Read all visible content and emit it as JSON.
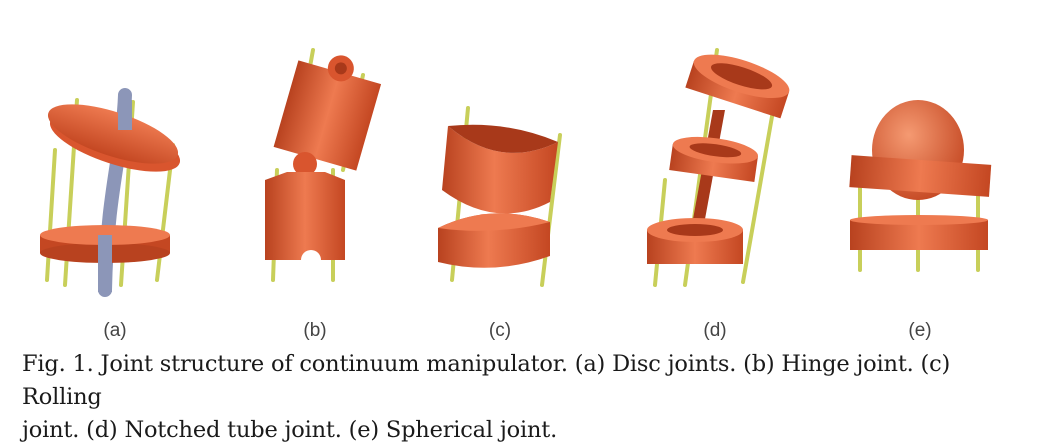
{
  "figure": {
    "panels": [
      {
        "label": "(a)",
        "icon": "disc-joint-drawing"
      },
      {
        "label": "(b)",
        "icon": "hinge-joint-drawing"
      },
      {
        "label": "(c)",
        "icon": "rolling-joint-drawing"
      },
      {
        "label": "(d)",
        "icon": "notched-tube-joint-drawing"
      },
      {
        "label": "(e)",
        "icon": "spherical-joint-drawing"
      }
    ],
    "colors": {
      "body": "#d9552e",
      "body_dark": "#a8391a",
      "body_light": "#ee7a50",
      "rod": "#c8cf5a",
      "backbone": "#8c96b8"
    }
  },
  "caption": {
    "line1": "Fig. 1. Joint structure of continuum manipulator. (a) Disc joints. (b) Hinge joint. (c) Rolling",
    "line2": "joint. (d) Notched tube joint. (e) Spherical joint."
  }
}
